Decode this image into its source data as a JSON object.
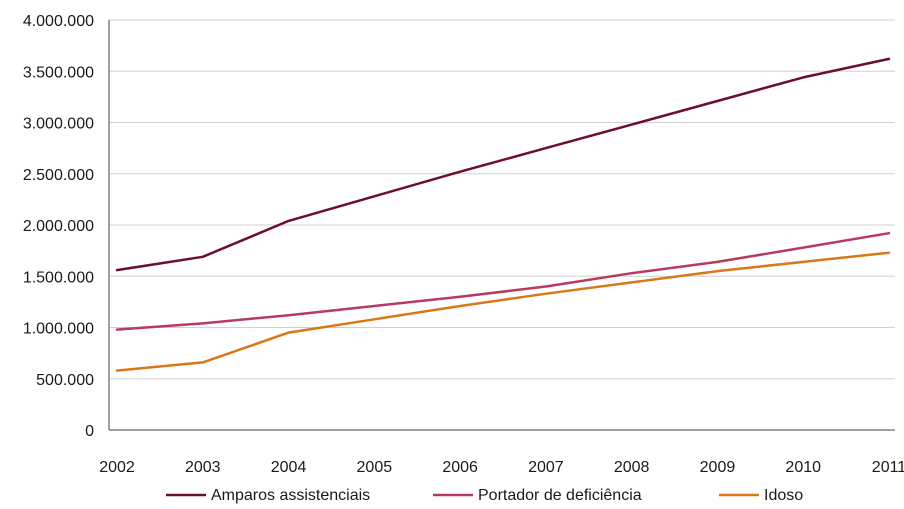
{
  "chart_data": {
    "type": "line",
    "title": "",
    "xlabel": "",
    "ylabel": "",
    "categories": [
      "2002",
      "2003",
      "2004",
      "2005",
      "2006",
      "2007",
      "2008",
      "2009",
      "2010",
      "2011"
    ],
    "ylim": [
      0,
      4000000
    ],
    "y_ticks": [
      {
        "value": 0,
        "label": "0"
      },
      {
        "value": 500000,
        "label": "500.000"
      },
      {
        "value": 1000000,
        "label": "1.000.000"
      },
      {
        "value": 1500000,
        "label": "1.500.000"
      },
      {
        "value": 2000000,
        "label": "2.000.000"
      },
      {
        "value": 2500000,
        "label": "2.500.000"
      },
      {
        "value": 3000000,
        "label": "3.000.000"
      },
      {
        "value": 3500000,
        "label": "3.500.000"
      },
      {
        "value": 4000000,
        "label": "4.000.000"
      }
    ],
    "grid": true,
    "legend_position": "bottom",
    "series": [
      {
        "name": "Amparos assistenciais",
        "color": "#6b1028",
        "values": [
          1560000,
          1690000,
          2040000,
          2280000,
          2520000,
          2750000,
          2980000,
          3210000,
          3440000,
          3620000
        ]
      },
      {
        "name": "Portador de deficiência",
        "color": "#b83a5e",
        "values": [
          980000,
          1040000,
          1120000,
          1210000,
          1300000,
          1400000,
          1530000,
          1640000,
          1780000,
          1920000
        ]
      },
      {
        "name": "Idoso",
        "color": "#d97818",
        "values": [
          580000,
          660000,
          950000,
          1080000,
          1210000,
          1330000,
          1440000,
          1550000,
          1640000,
          1730000
        ]
      }
    ]
  }
}
